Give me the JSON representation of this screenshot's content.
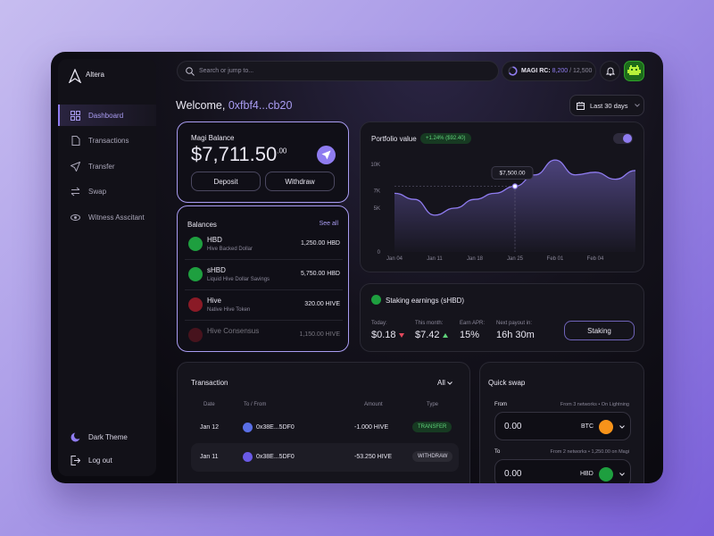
{
  "sidebar": {
    "brand": "Altera",
    "nav": [
      "Dashboard",
      "Transactions",
      "Transfer",
      "Swap",
      "Witness Asscitant"
    ],
    "theme": "Dark Theme",
    "logout": "Log out"
  },
  "topbar": {
    "search_placeholder": "Search or jump to...",
    "rc_label": "MAGI RC:",
    "rc_value": "8,200",
    "rc_max": "/ 12,500"
  },
  "welcome": {
    "text": "Welcome,",
    "account": "0xfbf4...cb20",
    "range": "Last 30 days"
  },
  "balance_card": {
    "label": "Magi Balance",
    "amount": "$7,711.50",
    "cents": ".00",
    "buttons": [
      "Deposit",
      "Withdraw"
    ]
  },
  "balances": {
    "title": "Balances",
    "see_all": "See all",
    "rows": [
      {
        "name": "HBD",
        "sub": "Hive Backed Dollar",
        "amount": "1,250.00 HBD"
      },
      {
        "name": "sHBD",
        "sub": "Liquid Hive Dollar Savings",
        "amount": "5,750.00 HBD"
      },
      {
        "name": "Hive",
        "sub": "Native Hive Token",
        "amount": "320.00 HIVE"
      },
      {
        "name": "Hive Consensus",
        "amount": "1,150.00 HIVE"
      }
    ]
  },
  "portfolio_chart": {
    "type": "area",
    "title": "Portfolio value",
    "badge": "+1.24% ($92.40)",
    "color": "#8f7cf0",
    "categories": [
      "Jan 04",
      null,
      "Jan 11",
      null,
      "Jan 18",
      null,
      "Jan 25",
      null,
      "Feb 01",
      null,
      "Feb 04",
      null,
      null
    ],
    "values": [
      6700,
      6000,
      4200,
      5000,
      6000,
      6700,
      7500,
      8800,
      10500,
      8800,
      9100,
      8300,
      9300
    ],
    "value_labels": [
      null,
      null,
      null,
      null,
      null,
      null,
      "$7,500.00",
      null,
      null,
      null,
      null,
      null,
      null
    ],
    "ylim": [
      0,
      12000
    ],
    "yticks": [
      0,
      {
        "value": 5000,
        "label": "5K"
      },
      {
        "value": 7000,
        "label": "7K"
      },
      {
        "value": 10000,
        "label": "10K"
      }
    ],
    "grid": false
  },
  "staking": {
    "title": "Staking earnings (sHBD)",
    "stats": [
      {
        "label": "Today:",
        "value": "$0.18"
      },
      {
        "label": "This month:",
        "value": "$7.42"
      },
      {
        "label": "Earn APR:",
        "value": "15%"
      },
      {
        "label": "Next payout in:",
        "value": "16h 30m"
      }
    ],
    "button": "Staking"
  },
  "transactions": {
    "title": "Transaction",
    "filter": "All",
    "columns": [
      "Date",
      "To / From",
      "Amount",
      "Type"
    ],
    "rows": [
      [
        "Jan 12",
        "0x38E...5DF0",
        "-1.000 HIVE",
        "TRANSFER"
      ],
      [
        "Jan 11",
        "0x38E...5DF0",
        "-53.250 HIVE",
        "WITHDRAW"
      ]
    ]
  },
  "quick_swap": {
    "title": "Quick swap",
    "from_label": "From",
    "from_note": "From 3 networks • On Lightning",
    "from_amount": "0.00",
    "from_token": "BTC",
    "to_label": "To",
    "to_note": "From 2 networks • 1,250.00 on Magi",
    "to_amount": "0.00",
    "to_token": "HBD"
  }
}
